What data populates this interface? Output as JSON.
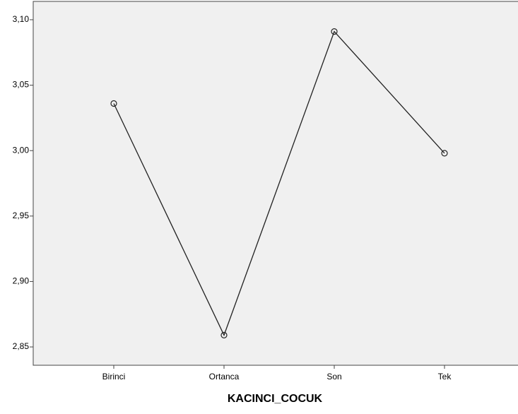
{
  "chart_data": {
    "type": "line",
    "x_label": "KACINCI_COCUK",
    "categories": [
      "Birinci",
      "Ortanca",
      "Son",
      "Tek"
    ],
    "values": [
      3.036,
      2.859,
      3.091,
      2.998
    ],
    "color": "#222222",
    "ylim": [
      2.836,
      3.114
    ],
    "yticks": [
      {
        "value": 2.85,
        "label": "2,85"
      },
      {
        "value": 2.9,
        "label": "2,90"
      },
      {
        "value": 2.95,
        "label": "2,95"
      },
      {
        "value": 3.0,
        "label": "3,00"
      },
      {
        "value": 3.05,
        "label": "3,05"
      },
      {
        "value": 3.1,
        "label": "3,10"
      }
    ]
  }
}
